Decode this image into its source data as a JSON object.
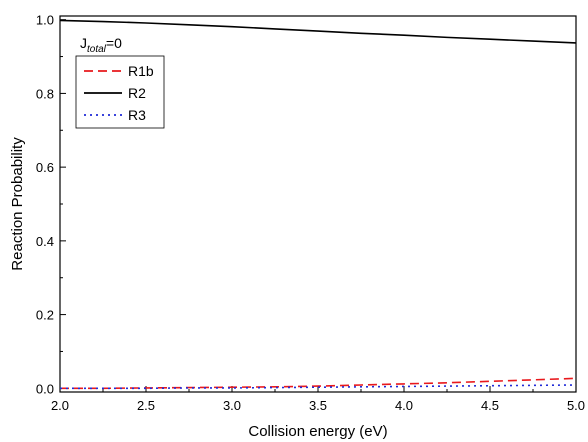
{
  "chart_data": {
    "type": "line",
    "xlabel": "Collision energy (eV)",
    "ylabel": "Reaction Probability",
    "xlim": [
      2.0,
      5.0
    ],
    "ylim": [
      -0.01,
      1.01
    ],
    "xticks": [
      2.0,
      2.5,
      3.0,
      3.5,
      4.0,
      4.5,
      5.0
    ],
    "xtick_labels": [
      "2.0",
      "2.5",
      "3.0",
      "3.5",
      "4.0",
      "4.5",
      "5.0"
    ],
    "yticks": [
      0.0,
      0.2,
      0.4,
      0.6,
      0.8,
      1.0
    ],
    "ytick_labels": [
      "0.0",
      "0.2",
      "0.4",
      "0.6",
      "0.8",
      "1.0"
    ],
    "grid": false,
    "legend_position": "top-left",
    "annotation": {
      "main": "J",
      "sub": "total",
      "tail": "=0"
    },
    "x": [
      2.0,
      2.25,
      2.5,
      2.75,
      3.0,
      3.25,
      3.5,
      3.75,
      4.0,
      4.25,
      4.5,
      4.75,
      5.0
    ],
    "series": [
      {
        "name": "R1b",
        "color": "#e8191d",
        "dash": "dashed",
        "values": [
          0.0,
          0.0,
          0.001,
          0.002,
          0.003,
          0.004,
          0.006,
          0.009,
          0.012,
          0.015,
          0.019,
          0.023,
          0.027
        ]
      },
      {
        "name": "R2",
        "color": "#000000",
        "dash": "solid",
        "values": [
          0.998,
          0.995,
          0.991,
          0.986,
          0.981,
          0.975,
          0.969,
          0.963,
          0.958,
          0.952,
          0.947,
          0.942,
          0.937
        ]
      },
      {
        "name": "R3",
        "color": "#1f2ad8",
        "dash": "dotted",
        "values": [
          0.0,
          0.0,
          0.0,
          0.001,
          0.001,
          0.002,
          0.003,
          0.004,
          0.005,
          0.006,
          0.007,
          0.008,
          0.009
        ]
      }
    ]
  }
}
